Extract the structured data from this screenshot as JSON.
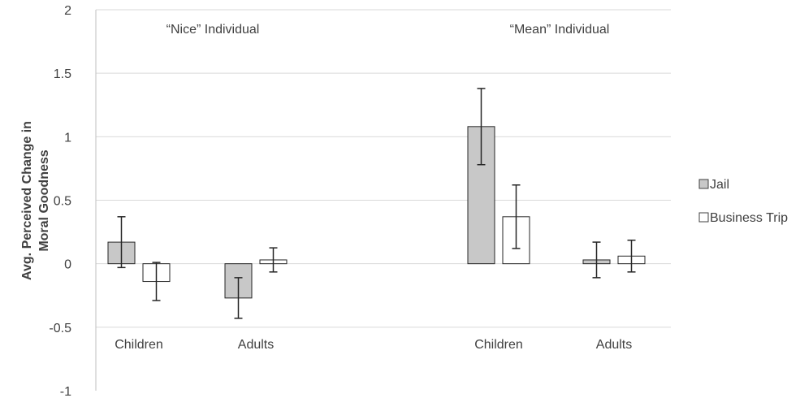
{
  "chart_data": {
    "type": "bar",
    "ylabel_lines": [
      "Avg. Perceived Change in",
      "Moral Goodness"
    ],
    "ylim": [
      -1,
      2
    ],
    "yticks": [
      -1,
      -0.5,
      0,
      0.5,
      1,
      1.5,
      2
    ],
    "ytick_labels": [
      "-1",
      "-0.5",
      "0",
      "0.5",
      "1",
      "1.5",
      "2"
    ],
    "grid": true,
    "legend_position": "right",
    "groups": [
      {
        "title": "“Nice” Individual",
        "categories": [
          {
            "label": "Children",
            "values": [
              0.17,
              -0.14
            ],
            "errors": [
              0.2,
              0.15
            ]
          },
          {
            "label": "Adults",
            "values": [
              -0.27,
              0.03
            ],
            "errors": [
              0.16,
              0.095
            ]
          }
        ]
      },
      {
        "title": "“Mean” Individual",
        "categories": [
          {
            "label": "Children",
            "values": [
              1.08,
              0.37
            ],
            "errors": [
              0.3,
              0.25
            ]
          },
          {
            "label": "Adults",
            "values": [
              0.03,
              0.06
            ],
            "errors": [
              0.14,
              0.125
            ]
          }
        ]
      }
    ],
    "series": [
      {
        "name": "Jail",
        "color": "#c8c8c8"
      },
      {
        "name": "Business Trip",
        "color": "#ffffff"
      }
    ]
  }
}
